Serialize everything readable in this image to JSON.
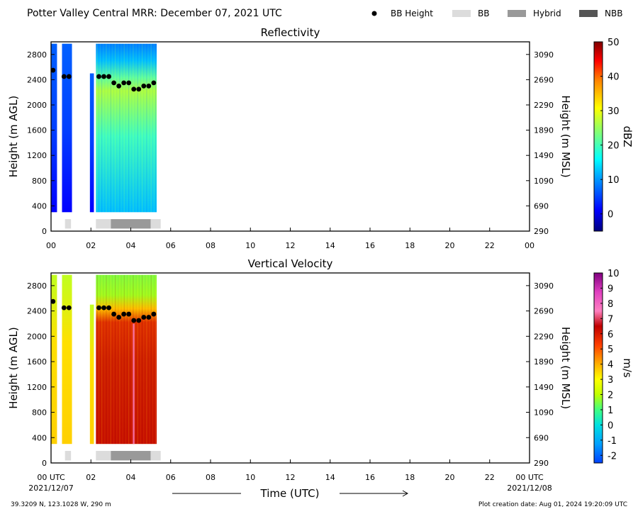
{
  "header": {
    "title": "Potter Valley Central MRR:  December 07, 2021 UTC"
  },
  "legend": [
    {
      "label": "BB Height",
      "kind": "dot",
      "color": "#000000"
    },
    {
      "label": "BB",
      "kind": "box",
      "color": "#dcdcdc"
    },
    {
      "label": "Hybrid",
      "kind": "box",
      "color": "#999999"
    },
    {
      "label": "NBB",
      "kind": "box",
      "color": "#555555"
    }
  ],
  "footer": {
    "location": "39.3209 N, 123.1028 W, 290 m",
    "creation": "Plot creation date: Aug 01, 2024 19:20:09 UTC",
    "xlabel": "Time (UTC)",
    "start_date": "2021/12/07",
    "end_date": "2021/12/08"
  },
  "chart_data": [
    {
      "type": "heatmap",
      "title": "Reflectivity",
      "ylabel": "Height (m AGL)",
      "y2label": "Height (m MSL)",
      "ylim": [
        0,
        3000
      ],
      "xlim": [
        0,
        24
      ],
      "yticks": [
        0,
        400,
        800,
        1200,
        1600,
        2000,
        2400,
        2800
      ],
      "y2ticks": [
        "290",
        "690",
        "1090",
        "1490",
        "1890",
        "2290",
        "2690",
        "3090"
      ],
      "xticks": [
        "00",
        "02",
        "04",
        "06",
        "08",
        "10",
        "12",
        "14",
        "16",
        "18",
        "20",
        "22",
        "00"
      ],
      "colorbar": {
        "label": "dBZ",
        "range": [
          -5,
          50
        ],
        "ticks": [
          "0",
          "10",
          "20",
          "30",
          "40",
          "50"
        ],
        "tick_values": [
          0,
          10,
          20,
          30,
          40,
          50
        ],
        "colormap": "jet"
      },
      "bb_height": {
        "hours": [
          0.1,
          0.65,
          0.9,
          2.4,
          2.65,
          2.9,
          3.15,
          3.4,
          3.65,
          3.9,
          4.15,
          4.4,
          4.65,
          4.9,
          5.15
        ],
        "heights": [
          2550,
          2450,
          2450,
          2450,
          2450,
          2450,
          2350,
          2300,
          2350,
          2350,
          2250,
          2250,
          2300,
          2300,
          2350
        ]
      },
      "classification": [
        {
          "start": 0.7,
          "end": 1.0,
          "class": "BB"
        },
        {
          "start": 2.25,
          "end": 3.0,
          "class": "BB"
        },
        {
          "start": 3.0,
          "end": 5.0,
          "class": "Hybrid"
        },
        {
          "start": 5.0,
          "end": 5.5,
          "class": "BB"
        }
      ]
    },
    {
      "type": "heatmap",
      "title": "Vertical Velocity",
      "ylabel": "Height (m AGL)",
      "y2label": "Height (m MSL)",
      "ylim": [
        0,
        3000
      ],
      "xlim": [
        0,
        24
      ],
      "yticks": [
        0,
        400,
        800,
        1200,
        1600,
        2000,
        2400,
        2800
      ],
      "y2ticks": [
        "290",
        "690",
        "1090",
        "1490",
        "1890",
        "2290",
        "2690",
        "3090"
      ],
      "xticks": [
        "00 UTC",
        "02",
        "04",
        "06",
        "08",
        "10",
        "12",
        "14",
        "16",
        "18",
        "20",
        "22",
        "00 UTC"
      ],
      "colorbar": {
        "label": "m/s",
        "range": [
          -2.5,
          10
        ],
        "ticks": [
          "-2",
          "-1",
          "0",
          "1",
          "2",
          "3",
          "4",
          "5",
          "6",
          "7",
          "8",
          "9",
          "10"
        ],
        "tick_values": [
          -2,
          -1,
          0,
          1,
          2,
          3,
          4,
          5,
          6,
          7,
          8,
          9,
          10
        ],
        "colormap": "velocity"
      },
      "bb_height": {
        "hours": [
          0.1,
          0.65,
          0.9,
          2.4,
          2.65,
          2.9,
          3.15,
          3.4,
          3.65,
          3.9,
          4.15,
          4.4,
          4.65,
          4.9,
          5.15
        ],
        "heights": [
          2550,
          2450,
          2450,
          2450,
          2450,
          2450,
          2350,
          2300,
          2350,
          2350,
          2250,
          2250,
          2300,
          2300,
          2350
        ]
      },
      "classification": [
        {
          "start": 0.7,
          "end": 1.0,
          "class": "BB"
        },
        {
          "start": 2.25,
          "end": 3.0,
          "class": "BB"
        },
        {
          "start": 3.0,
          "end": 5.0,
          "class": "Hybrid"
        },
        {
          "start": 5.0,
          "end": 5.5,
          "class": "BB"
        }
      ]
    }
  ],
  "colors": {
    "BB": "#dcdcdc",
    "Hybrid": "#999999",
    "NBB": "#555555"
  }
}
